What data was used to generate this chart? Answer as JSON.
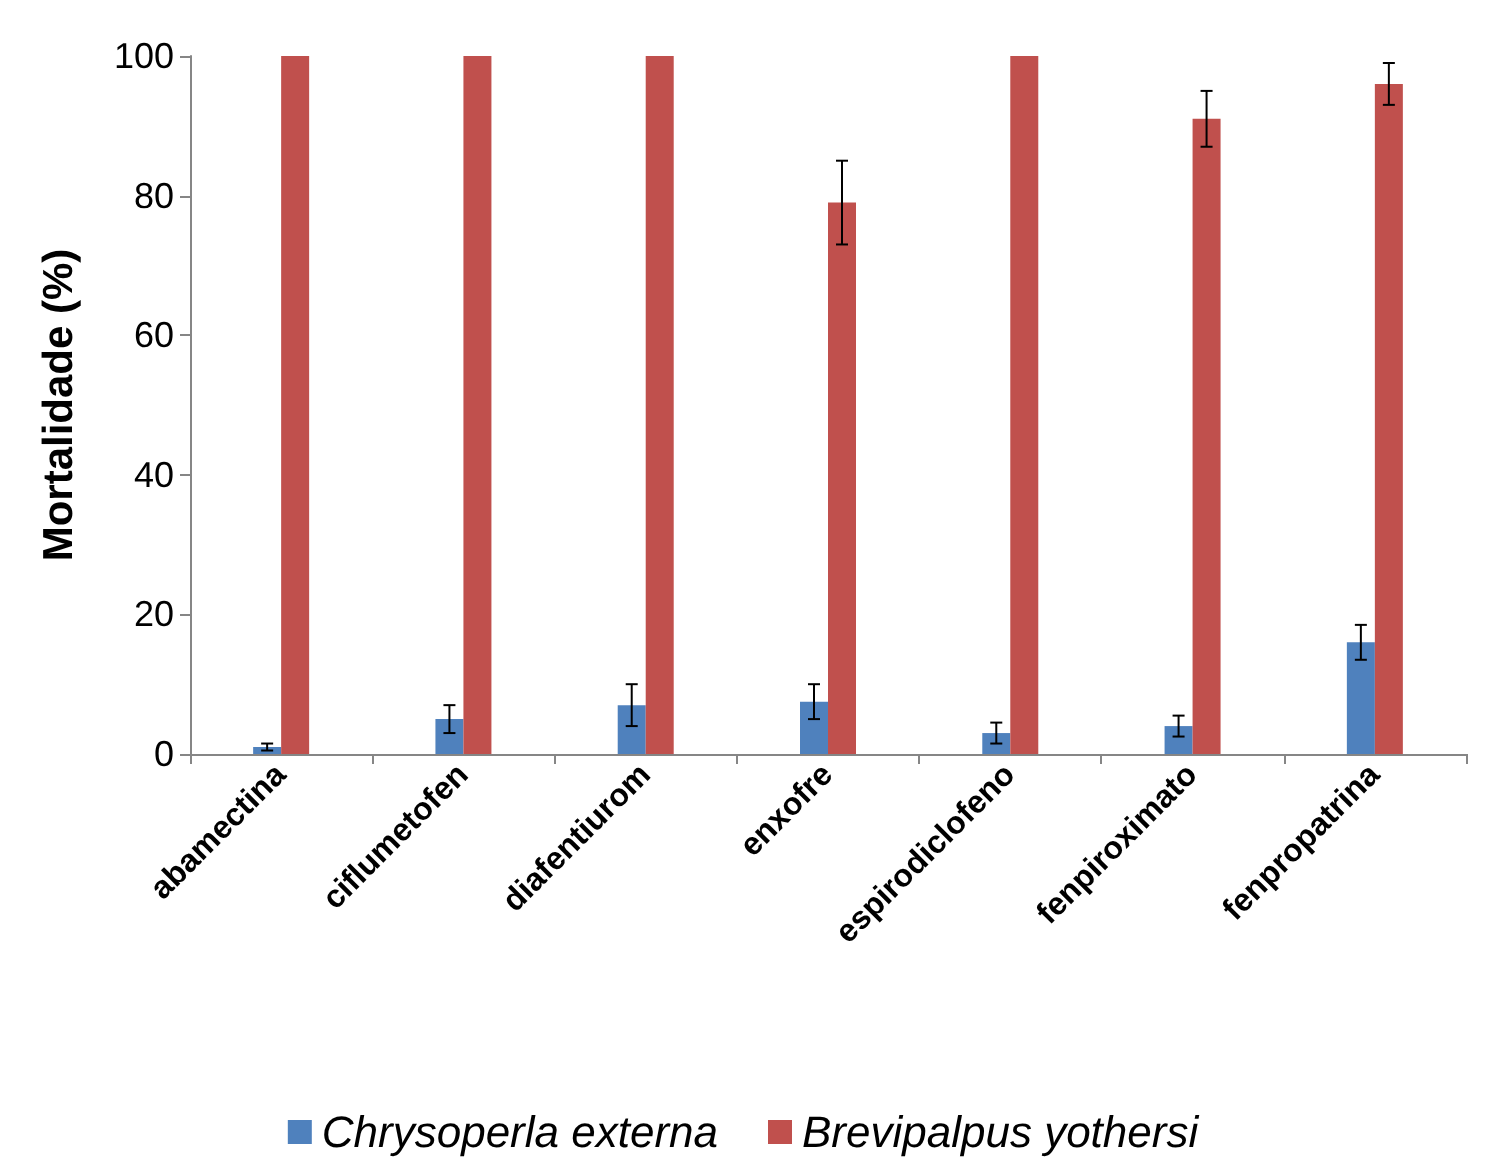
{
  "chart_data": {
    "type": "bar",
    "ylabel": "Mortalidade (%)",
    "categories": [
      "abamectina",
      "ciflumetofen",
      "diafentiurom",
      "enxofre",
      "espirodiclofeno",
      "fenpiroximato",
      "fenpropatrina"
    ],
    "series": [
      {
        "name": "Chrysoperla externa",
        "color": "#4f81bd",
        "values": [
          1,
          5,
          7,
          7.5,
          3,
          4,
          16
        ],
        "errors": [
          0.5,
          2,
          3,
          2.5,
          1.5,
          1.5,
          2.5
        ]
      },
      {
        "name": "Brevipalpus yothersi",
        "color": "#c0504d",
        "values": [
          100,
          100,
          100,
          79,
          100,
          91,
          96
        ],
        "errors": [
          null,
          null,
          null,
          6,
          null,
          4,
          3
        ]
      }
    ],
    "ylim": [
      0,
      100
    ],
    "yticks": [
      0,
      20,
      40,
      60,
      80,
      100
    ],
    "grid": false,
    "legend": "bottom"
  }
}
